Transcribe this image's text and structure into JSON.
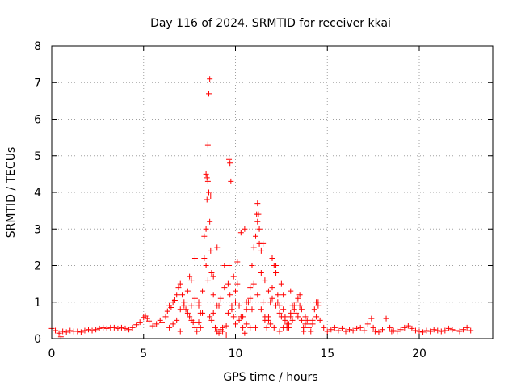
{
  "chart_data": {
    "type": "scatter",
    "title": "Day 116 of 2024, SRMTID for receiver kkai",
    "xlabel": "GPS time / hours",
    "ylabel": "SRMTID / TECUs",
    "xlim": [
      0,
      24
    ],
    "ylim": [
      0,
      8
    ],
    "xticks": [
      0,
      5,
      10,
      15,
      20
    ],
    "yticks": [
      0,
      1,
      2,
      3,
      4,
      5,
      6,
      7,
      8
    ],
    "grid": true,
    "marker": "+",
    "color": "#ff0000",
    "series": [
      {
        "name": "SRMTID",
        "x": [
          0.0,
          0.2,
          0.4,
          0.5,
          0.6,
          0.8,
          1.0,
          1.2,
          1.4,
          1.6,
          1.8,
          2.0,
          2.2,
          2.4,
          2.6,
          2.8,
          3.0,
          3.2,
          3.4,
          3.6,
          3.8,
          4.0,
          4.2,
          4.4,
          4.6,
          4.8,
          5.0,
          5.1,
          5.2,
          5.3,
          5.5,
          5.7,
          5.9,
          6.0,
          6.2,
          6.3,
          6.4,
          6.5,
          6.6,
          6.7,
          6.8,
          6.9,
          7.0,
          7.1,
          7.2,
          7.3,
          7.4,
          7.5,
          7.6,
          7.7,
          7.8,
          7.9,
          8.0,
          8.1,
          8.2,
          8.3,
          8.4,
          8.45,
          8.5,
          8.55,
          8.6,
          8.65,
          8.7,
          8.8,
          8.9,
          9.0,
          9.1,
          9.2,
          9.3,
          9.5,
          9.6,
          9.65,
          9.7,
          9.8,
          9.9,
          10.0,
          10.1,
          10.2,
          10.3,
          10.4,
          10.5,
          10.6,
          10.7,
          10.8,
          10.9,
          11.0,
          11.1,
          11.15,
          11.2,
          11.3,
          11.4,
          11.5,
          11.6,
          11.7,
          11.8,
          11.9,
          12.0,
          12.1,
          12.2,
          12.3,
          12.4,
          12.5,
          12.6,
          12.7,
          12.8,
          12.9,
          13.0,
          13.1,
          13.2,
          13.3,
          13.4,
          13.5,
          13.6,
          13.7,
          13.8,
          13.9,
          14.0,
          14.1,
          14.2,
          14.3,
          14.4,
          14.5,
          14.6,
          14.8,
          15.0,
          15.2,
          15.4,
          15.6,
          15.8,
          16.0,
          16.2,
          16.4,
          16.6,
          16.8,
          17.0,
          17.2,
          17.4,
          17.5,
          17.6,
          17.8,
          18.0,
          18.2,
          18.4,
          18.5,
          18.6,
          18.8,
          19.0,
          19.2,
          19.4,
          19.6,
          19.8,
          20.0,
          20.2,
          20.4,
          20.6,
          20.8,
          21.0,
          21.2,
          21.4,
          21.6,
          21.8,
          22.0,
          22.2,
          22.4,
          22.6,
          22.8,
          6.8,
          7.0,
          7.2,
          7.4,
          7.6,
          7.8,
          8.0,
          8.2,
          8.3,
          8.4,
          8.5,
          8.6,
          8.7,
          8.8,
          9.0,
          9.2,
          9.4,
          9.6,
          9.8,
          10.0,
          10.2,
          10.4,
          10.6,
          10.8,
          11.0,
          11.2,
          11.4,
          11.6,
          11.8,
          12.0,
          12.2,
          12.4,
          12.6,
          12.8,
          13.0,
          13.2,
          13.4,
          13.6,
          13.8,
          14.0,
          14.4,
          8.4,
          8.45,
          8.5,
          8.55,
          8.6,
          8.65,
          9.65,
          9.7,
          9.75,
          10.3,
          10.5,
          11.2,
          11.25,
          11.3,
          11.4,
          11.5,
          12.0,
          12.2,
          12.5,
          13.0,
          13.5,
          14.5,
          7.5,
          7.8,
          8.0,
          8.8,
          9.0,
          9.4,
          9.9,
          10.1,
          10.6,
          10.9,
          11.6,
          11.8,
          12.3,
          12.7,
          13.1,
          13.3,
          6.4,
          6.6,
          7.0,
          7.6,
          8.1,
          9.1,
          9.3,
          9.5,
          10.0,
          10.8,
          11.1,
          11.9,
          12.1,
          12.4,
          12.6,
          12.9,
          13.7,
          14.2
        ],
        "y": [
          0.28,
          0.22,
          0.15,
          0.05,
          0.2,
          0.18,
          0.22,
          0.2,
          0.2,
          0.18,
          0.22,
          0.25,
          0.22,
          0.25,
          0.28,
          0.3,
          0.28,
          0.3,
          0.3,
          0.28,
          0.3,
          0.28,
          0.25,
          0.3,
          0.38,
          0.45,
          0.58,
          0.62,
          0.55,
          0.48,
          0.35,
          0.4,
          0.5,
          0.45,
          0.6,
          0.75,
          0.9,
          0.85,
          1.0,
          1.05,
          1.2,
          1.4,
          1.5,
          1.2,
          0.9,
          0.8,
          0.7,
          0.6,
          0.5,
          0.45,
          0.3,
          0.2,
          0.45,
          0.7,
          1.3,
          2.2,
          3.0,
          3.8,
          4.3,
          4.0,
          3.2,
          2.4,
          1.8,
          1.2,
          0.3,
          0.2,
          0.15,
          0.25,
          0.3,
          0.35,
          1.5,
          2.0,
          1.2,
          0.8,
          0.6,
          1.0,
          1.5,
          0.9,
          0.6,
          0.3,
          0.15,
          0.4,
          1.0,
          1.4,
          2.0,
          2.5,
          2.8,
          3.4,
          3.2,
          2.6,
          1.8,
          1.0,
          0.6,
          0.3,
          0.5,
          1.0,
          1.4,
          2.0,
          1.8,
          1.2,
          0.9,
          0.6,
          0.8,
          0.5,
          0.3,
          0.4,
          0.7,
          0.5,
          0.8,
          1.0,
          0.6,
          0.9,
          0.5,
          0.3,
          0.4,
          0.5,
          0.3,
          0.2,
          0.5,
          0.8,
          1.0,
          0.9,
          0.5,
          0.3,
          0.2,
          0.25,
          0.3,
          0.22,
          0.28,
          0.2,
          0.25,
          0.22,
          0.28,
          0.3,
          0.22,
          0.4,
          0.55,
          0.3,
          0.2,
          0.18,
          0.25,
          0.55,
          0.3,
          0.2,
          0.22,
          0.2,
          0.25,
          0.3,
          0.35,
          0.28,
          0.22,
          0.2,
          0.18,
          0.22,
          0.2,
          0.25,
          0.22,
          0.2,
          0.22,
          0.28,
          0.25,
          0.22,
          0.2,
          0.25,
          0.3,
          0.22,
          0.5,
          0.8,
          1.0,
          1.3,
          1.6,
          1.1,
          0.9,
          0.7,
          2.8,
          2.0,
          1.6,
          0.6,
          0.5,
          0.7,
          0.9,
          1.1,
          1.4,
          0.7,
          0.9,
          1.3,
          0.5,
          0.6,
          0.8,
          1.1,
          1.5,
          1.2,
          0.8,
          0.5,
          0.6,
          1.1,
          0.9,
          0.7,
          1.2,
          0.4,
          0.6,
          0.9,
          1.1,
          0.8,
          0.6,
          0.4,
          0.6,
          4.5,
          4.4,
          5.3,
          6.7,
          7.1,
          3.9,
          4.9,
          4.8,
          4.3,
          2.9,
          3.0,
          3.7,
          3.4,
          3.0,
          2.4,
          2.6,
          2.2,
          2.0,
          1.5,
          1.3,
          1.2,
          1.0,
          1.7,
          2.2,
          1.0,
          1.7,
          2.5,
          2.0,
          1.7,
          2.1,
          1.0,
          0.8,
          1.6,
          1.3,
          1.0,
          0.6,
          0.9,
          0.7,
          0.3,
          0.4,
          0.2,
          0.9,
          0.3,
          0.9,
          0.2,
          0.1,
          0.4,
          0.3,
          0.3,
          0.4,
          0.3,
          0.2,
          0.3,
          0.3,
          0.2,
          0.4
        ]
      }
    ]
  }
}
